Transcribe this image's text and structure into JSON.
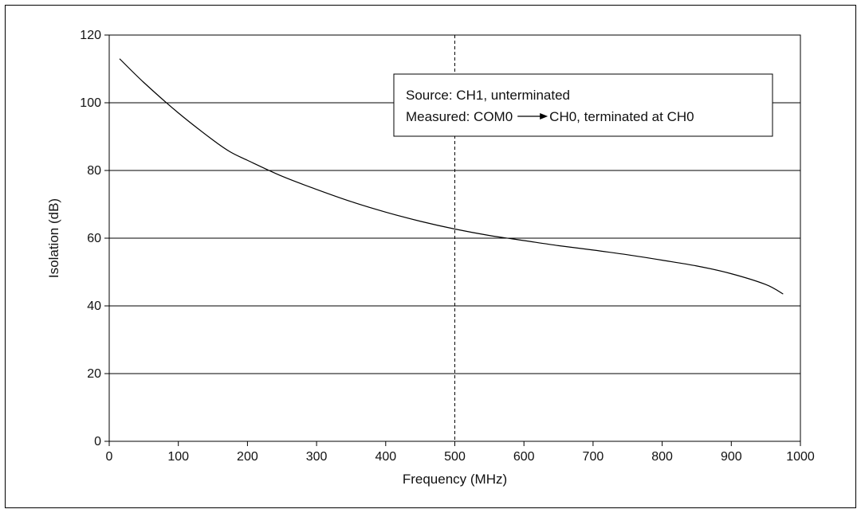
{
  "chart_data": {
    "type": "line",
    "title": "",
    "xlabel": "Frequency (MHz)",
    "ylabel": "Isolation (dB)",
    "xlim": [
      0,
      1000
    ],
    "ylim": [
      0,
      120
    ],
    "x_ticks": [
      "0",
      "100",
      "200",
      "300",
      "400",
      "500",
      "600",
      "700",
      "800",
      "900",
      "1000"
    ],
    "y_ticks": [
      "0",
      "20",
      "40",
      "60",
      "80",
      "100",
      "120"
    ],
    "grid": "horizontal",
    "reference_line_x": 500,
    "legend": {
      "placement": "top-right",
      "line1": "Source: CH1, unterminated",
      "line2_prefix": "Measured: COM0",
      "line2_suffix": "CH0, terminated at CH0"
    },
    "series": [
      {
        "x": [
          15,
          50,
          100,
          150,
          175,
          200,
          250,
          300,
          350,
          400,
          450,
          500,
          550,
          600,
          650,
          700,
          750,
          800,
          850,
          900,
          950,
          975
        ],
        "y": [
          113,
          106,
          97,
          89,
          85.5,
          83,
          78.3,
          74.4,
          70.8,
          67.7,
          65,
          62.7,
          60.8,
          59.3,
          57.8,
          56.5,
          55.1,
          53.5,
          51.8,
          49.5,
          46.3,
          43.5
        ]
      }
    ]
  }
}
